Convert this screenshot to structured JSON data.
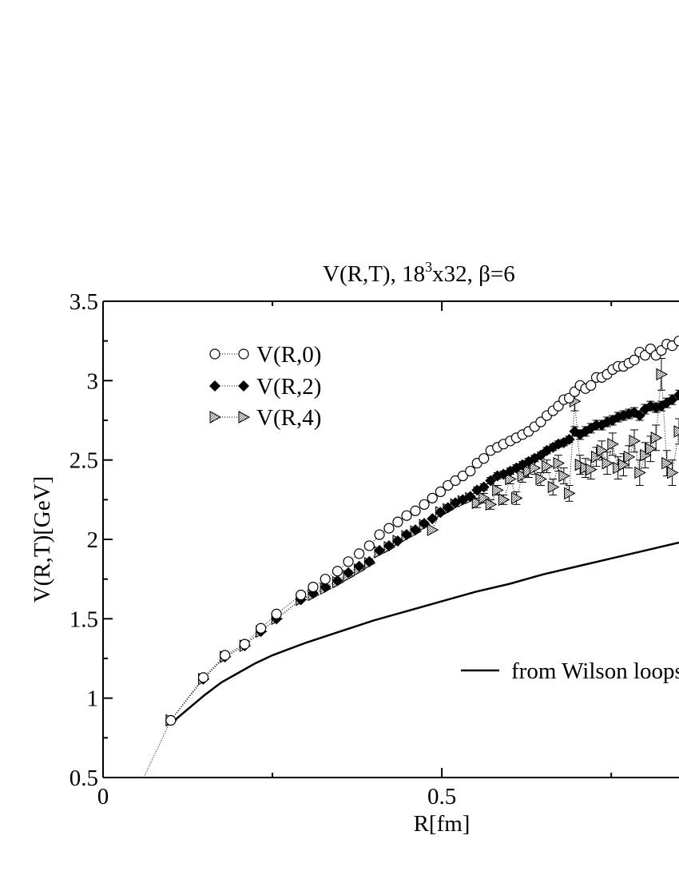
{
  "chart_data": {
    "type": "scatter",
    "title": "V(R,T), 18",
    "title_sup": "3",
    "title_tail": "x32, ",
    "title_beta": "β=6",
    "xlabel": "R[fm]",
    "ylabel": "V(R,T)[GeV]",
    "xlim": [
      0,
      0.85
    ],
    "ylim": [
      0.5,
      3.5
    ],
    "x_ticks": [
      {
        "v": 0,
        "label": "0"
      },
      {
        "v": 0.5,
        "label": "0.5"
      }
    ],
    "y_ticks": [
      {
        "v": 0.5,
        "label": "0.5"
      },
      {
        "v": 1,
        "label": "1"
      },
      {
        "v": 1.5,
        "label": "1.5"
      },
      {
        "v": 2,
        "label": "2"
      },
      {
        "v": 2.5,
        "label": "2.5"
      },
      {
        "v": 3,
        "label": "3"
      },
      {
        "v": 3.5,
        "label": "3.5"
      }
    ],
    "legend_position": "top-left",
    "series": [
      {
        "name": "V(R,0)",
        "marker": "circle",
        "x": [
          0.1,
          0.148,
          0.18,
          0.209,
          0.233,
          0.256,
          0.292,
          0.31,
          0.328,
          0.346,
          0.362,
          0.378,
          0.393,
          0.408,
          0.422,
          0.435,
          0.448,
          0.461,
          0.474,
          0.486,
          0.498,
          0.509,
          0.52,
          0.531,
          0.542,
          0.552,
          0.562,
          0.572,
          0.582,
          0.591,
          0.601,
          0.61,
          0.619,
          0.628,
          0.637,
          0.646,
          0.655,
          0.664,
          0.672,
          0.68,
          0.688,
          0.696,
          0.704,
          0.712,
          0.72,
          0.728,
          0.736,
          0.744,
          0.752,
          0.76,
          0.768,
          0.776,
          0.784,
          0.792,
          0.8,
          0.808,
          0.816,
          0.824,
          0.832,
          0.84,
          0.85
        ],
        "y": [
          0.86,
          1.13,
          1.27,
          1.34,
          1.44,
          1.53,
          1.65,
          1.7,
          1.75,
          1.8,
          1.86,
          1.91,
          1.96,
          2.03,
          2.07,
          2.11,
          2.15,
          2.18,
          2.22,
          2.26,
          2.3,
          2.34,
          2.37,
          2.4,
          2.43,
          2.48,
          2.51,
          2.56,
          2.58,
          2.6,
          2.62,
          2.64,
          2.66,
          2.68,
          2.71,
          2.74,
          2.78,
          2.81,
          2.84,
          2.88,
          2.89,
          2.93,
          2.97,
          2.95,
          2.97,
          3.02,
          3.02,
          3.04,
          3.07,
          3.09,
          3.09,
          3.11,
          3.13,
          3.18,
          3.16,
          3.2,
          3.16,
          3.19,
          3.23,
          3.22,
          3.25
        ]
      },
      {
        "name": "V(R,2)",
        "marker": "diamond",
        "x": [
          0.1,
          0.148,
          0.18,
          0.209,
          0.233,
          0.256,
          0.292,
          0.31,
          0.328,
          0.346,
          0.362,
          0.378,
          0.393,
          0.408,
          0.422,
          0.435,
          0.448,
          0.461,
          0.474,
          0.486,
          0.498,
          0.509,
          0.52,
          0.531,
          0.542,
          0.552,
          0.562,
          0.572,
          0.582,
          0.591,
          0.601,
          0.61,
          0.619,
          0.628,
          0.637,
          0.646,
          0.655,
          0.664,
          0.672,
          0.68,
          0.688,
          0.696,
          0.704,
          0.712,
          0.72,
          0.728,
          0.736,
          0.744,
          0.752,
          0.76,
          0.768,
          0.776,
          0.784,
          0.792,
          0.8,
          0.808,
          0.816,
          0.824,
          0.832,
          0.84,
          0.85
        ],
        "y": [
          0.86,
          1.12,
          1.26,
          1.33,
          1.42,
          1.5,
          1.62,
          1.66,
          1.7,
          1.74,
          1.79,
          1.83,
          1.86,
          1.93,
          1.96,
          1.99,
          2.03,
          2.06,
          2.1,
          2.13,
          2.17,
          2.2,
          2.23,
          2.25,
          2.27,
          2.31,
          2.33,
          2.37,
          2.4,
          2.41,
          2.43,
          2.45,
          2.47,
          2.49,
          2.51,
          2.53,
          2.56,
          2.58,
          2.6,
          2.61,
          2.63,
          2.68,
          2.66,
          2.68,
          2.7,
          2.72,
          2.72,
          2.74,
          2.75,
          2.77,
          2.78,
          2.79,
          2.8,
          2.78,
          2.82,
          2.84,
          2.83,
          2.84,
          2.86,
          2.88,
          2.91
        ],
        "err": [
          0,
          0,
          0,
          0,
          0,
          0,
          0,
          0,
          0,
          0,
          0,
          0,
          0,
          0,
          0,
          0,
          0,
          0,
          0,
          0,
          0,
          0,
          0,
          0,
          0,
          0.02,
          0.02,
          0.02,
          0.02,
          0.02,
          0.02,
          0.02,
          0.02,
          0.02,
          0.02,
          0.02,
          0.02,
          0.02,
          0.02,
          0.02,
          0.02,
          0.03,
          0.03,
          0.03,
          0.03,
          0.03,
          0.03,
          0.03,
          0.03,
          0.03,
          0.03,
          0.03,
          0.03,
          0.03,
          0.03,
          0.03,
          0.03,
          0.03,
          0.03,
          0.03,
          0.03
        ]
      },
      {
        "name": "V(R,4)",
        "marker": "triangle",
        "x": [
          0.1,
          0.148,
          0.18,
          0.209,
          0.233,
          0.256,
          0.292,
          0.31,
          0.328,
          0.346,
          0.362,
          0.378,
          0.393,
          0.408,
          0.422,
          0.435,
          0.448,
          0.461,
          0.474,
          0.486,
          0.498,
          0.509,
          0.52,
          0.531,
          0.542,
          0.552,
          0.562,
          0.572,
          0.582,
          0.591,
          0.601,
          0.61,
          0.619,
          0.628,
          0.637,
          0.646,
          0.655,
          0.664,
          0.672,
          0.68,
          0.688,
          0.696,
          0.704,
          0.712,
          0.72,
          0.728,
          0.736,
          0.744,
          0.752,
          0.76,
          0.768,
          0.776,
          0.784,
          0.792,
          0.8,
          0.808,
          0.816,
          0.824,
          0.832,
          0.84,
          0.85
        ],
        "y": [
          0.86,
          1.12,
          1.26,
          1.33,
          1.42,
          1.5,
          1.62,
          1.65,
          1.69,
          1.73,
          1.77,
          1.81,
          1.85,
          1.92,
          1.95,
          1.99,
          2.02,
          2.05,
          2.09,
          2.06,
          2.17,
          2.19,
          2.22,
          2.24,
          2.26,
          2.23,
          2.26,
          2.22,
          2.31,
          2.25,
          2.38,
          2.26,
          2.4,
          2.43,
          2.45,
          2.38,
          2.46,
          2.33,
          2.48,
          2.4,
          2.29,
          2.87,
          2.47,
          2.45,
          2.44,
          2.52,
          2.56,
          2.48,
          2.6,
          2.45,
          2.47,
          2.52,
          2.62,
          2.42,
          2.53,
          2.57,
          2.64,
          3.04,
          2.48,
          2.42,
          2.68
        ],
        "err": [
          0,
          0,
          0,
          0,
          0,
          0,
          0,
          0,
          0,
          0,
          0,
          0,
          0,
          0,
          0,
          0,
          0,
          0,
          0,
          0,
          0,
          0,
          0,
          0,
          0,
          0.03,
          0.03,
          0.03,
          0.03,
          0.03,
          0.03,
          0.04,
          0.04,
          0.04,
          0.04,
          0.04,
          0.04,
          0.05,
          0.05,
          0.05,
          0.05,
          0.06,
          0.06,
          0.06,
          0.06,
          0.06,
          0.06,
          0.07,
          0.07,
          0.07,
          0.07,
          0.07,
          0.07,
          0.08,
          0.08,
          0.08,
          0.08,
          0.1,
          0.08,
          0.08,
          0.08
        ]
      }
    ],
    "reference_line": {
      "name": "from Wilson loops",
      "x": [
        0.1,
        0.125,
        0.15,
        0.175,
        0.2,
        0.225,
        0.25,
        0.275,
        0.3,
        0.35,
        0.4,
        0.45,
        0.5,
        0.55,
        0.6,
        0.65,
        0.7,
        0.75,
        0.8,
        0.85
      ],
      "y": [
        0.84,
        0.93,
        1.02,
        1.1,
        1.16,
        1.22,
        1.27,
        1.31,
        1.35,
        1.42,
        1.49,
        1.55,
        1.61,
        1.67,
        1.72,
        1.78,
        1.83,
        1.88,
        1.93,
        1.98
      ]
    },
    "extrapolation": {
      "x": [
        0.06,
        0.1
      ],
      "y": [
        0.5,
        0.86
      ]
    }
  }
}
